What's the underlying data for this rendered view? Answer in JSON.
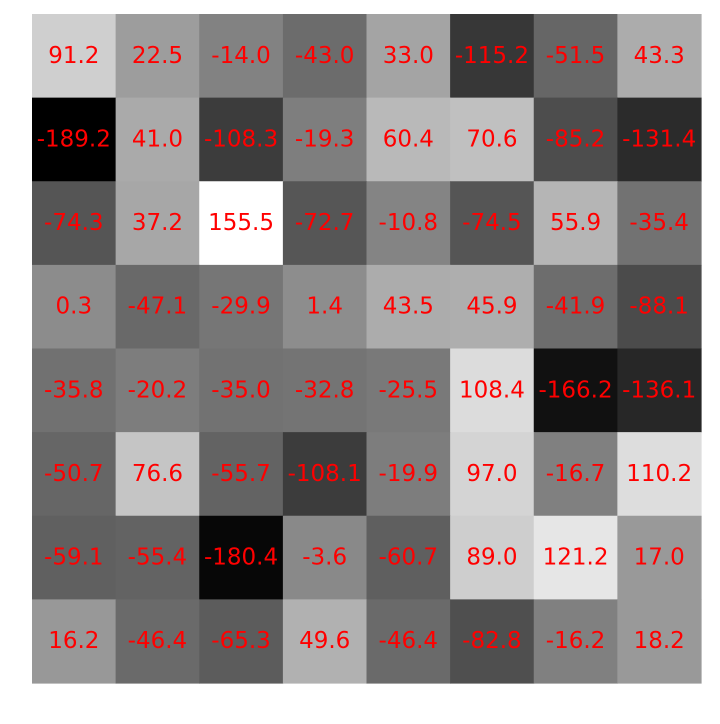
{
  "chart_data": {
    "type": "heatmap",
    "title": "",
    "xlabel": "",
    "ylabel": "",
    "colormap": "grayscale",
    "value_range": [
      -189.2,
      155.5
    ],
    "label_color": "#ff0000",
    "values": [
      [
        91.2,
        22.5,
        -14.0,
        -43.0,
        33.0,
        -115.2,
        -51.5,
        43.3
      ],
      [
        -189.2,
        41.0,
        -108.3,
        -19.3,
        60.4,
        70.6,
        -85.2,
        -131.4
      ],
      [
        -74.3,
        37.2,
        155.5,
        -72.7,
        -10.8,
        -74.5,
        55.9,
        -35.4
      ],
      [
        0.3,
        -47.1,
        -29.9,
        1.4,
        43.5,
        45.9,
        -41.9,
        -88.1
      ],
      [
        -35.8,
        -20.2,
        -35.0,
        -32.8,
        -25.5,
        108.4,
        -166.2,
        -136.1
      ],
      [
        -50.7,
        76.6,
        -55.7,
        -108.1,
        -19.9,
        97.0,
        -16.7,
        110.2
      ],
      [
        -59.1,
        -55.4,
        -180.4,
        -3.6,
        -60.7,
        89.0,
        121.2,
        17.0
      ],
      [
        16.2,
        -46.4,
        -65.3,
        49.6,
        -46.4,
        -82.8,
        -16.2,
        18.2
      ]
    ]
  }
}
